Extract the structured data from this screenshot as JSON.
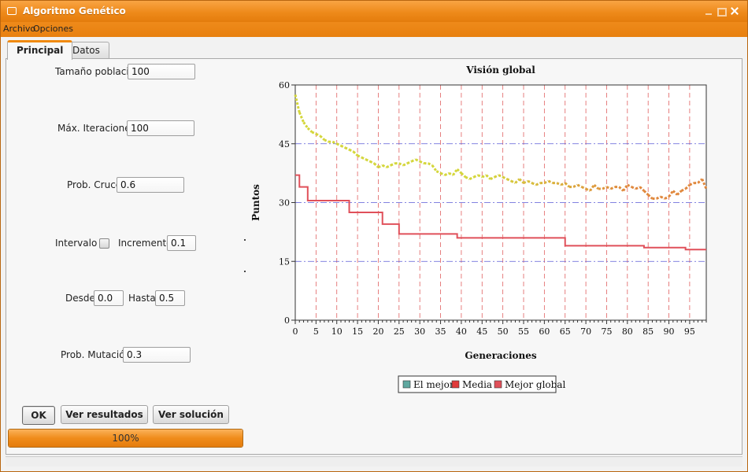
{
  "window": {
    "title": "Algoritmo Genético",
    "accent": "#f08a10"
  },
  "menu": {
    "archivo": "Archivo",
    "opciones": "Opciones"
  },
  "tabs": [
    {
      "label": "Principal",
      "active": true
    },
    {
      "label": "Datos",
      "active": false
    }
  ],
  "form": {
    "poblacion": {
      "label": "Tamaño población",
      "value": "100"
    },
    "iteraciones": {
      "label": "Máx. Iteraciones",
      "value": "100"
    },
    "cruce": {
      "label": "Prob. Cruce",
      "value": "0.6"
    },
    "intervalo": {
      "label": "Intervalo",
      "checked": false
    },
    "incremento": {
      "label": "Incremento",
      "value": "0.1"
    },
    "desde": {
      "label": "Desde",
      "value": "0.0"
    },
    "hasta": {
      "label": "Hasta",
      "value": "0.5"
    },
    "mutacion": {
      "label": "Prob. Mutación",
      "value": "0.3"
    }
  },
  "buttons": {
    "ok": "OK",
    "resultados": "Ver resultados",
    "solucion": "Ver solución"
  },
  "progress": {
    "text": "100%",
    "value": 1.0
  },
  "chart_data": {
    "type": "line",
    "title": "Visión global",
    "xlabel": "Generaciones",
    "ylabel": "Puntos",
    "xlim": [
      0,
      99
    ],
    "ylim": [
      0,
      60
    ],
    "x_ticks": [
      0,
      5,
      10,
      15,
      20,
      25,
      30,
      35,
      40,
      45,
      50,
      55,
      60,
      65,
      70,
      75,
      80,
      85,
      90,
      95
    ],
    "y_ticks": [
      0,
      15,
      30,
      45,
      60
    ],
    "grid": true,
    "legend_position": "bottom-center",
    "series": [
      {
        "name": "El mejor",
        "color_start": "#d4d63a",
        "color_end": "#e0873c",
        "values": [
          57.5,
          53,
          50.5,
          49,
          48,
          47.5,
          47,
          46,
          45.5,
          45.5,
          45,
          44.5,
          44,
          43.5,
          43,
          42,
          41.5,
          41,
          40.5,
          40,
          39,
          39.5,
          39,
          39.5,
          40,
          40,
          39.5,
          40,
          40.5,
          41,
          40.5,
          40,
          40,
          39.5,
          38,
          37.5,
          37,
          37.5,
          37,
          38.5,
          37.5,
          36.5,
          36,
          36.5,
          37,
          36.5,
          37,
          36,
          36.5,
          37,
          36.5,
          36,
          35.5,
          35,
          36,
          35,
          35.5,
          35,
          34.5,
          35,
          35,
          35.5,
          35,
          35,
          34.5,
          35,
          34,
          34,
          34.5,
          34,
          33.5,
          33,
          34.5,
          33.5,
          33.5,
          34,
          33.5,
          34,
          34,
          33,
          34.5,
          34,
          33.5,
          34,
          33,
          32,
          31,
          31,
          31.5,
          31,
          31.5,
          33,
          32,
          33,
          33.5,
          34.5,
          35,
          35,
          36,
          33.5
        ]
      },
      {
        "name": "Media",
        "color": "#e03a3a"
      },
      {
        "name": "Mejor global",
        "color": "#e0505a",
        "values": [
          37,
          34,
          34,
          30.5,
          30.5,
          30.5,
          30.5,
          30.5,
          30.5,
          30.5,
          30.5,
          30.5,
          30.5,
          27.5,
          27.5,
          27.5,
          27.5,
          27.5,
          27.5,
          27.5,
          27.5,
          24.5,
          24.5,
          24.5,
          24.5,
          22,
          22,
          22,
          22,
          22,
          22,
          22,
          22,
          22,
          22,
          22,
          22,
          22,
          22,
          21,
          21,
          21,
          21,
          21,
          21,
          21,
          21,
          21,
          21,
          21,
          21,
          21,
          21,
          21,
          21,
          21,
          21,
          21,
          21,
          21,
          21,
          21,
          21,
          21,
          21,
          19,
          19,
          19,
          19,
          19,
          19,
          19,
          19,
          19,
          19,
          19,
          19,
          19,
          19,
          19,
          19,
          19,
          19,
          19,
          18.5,
          18.5,
          18.5,
          18.5,
          18.5,
          18.5,
          18.5,
          18.5,
          18.5,
          18.5,
          18,
          18,
          18,
          18,
          18,
          18
        ]
      }
    ]
  }
}
